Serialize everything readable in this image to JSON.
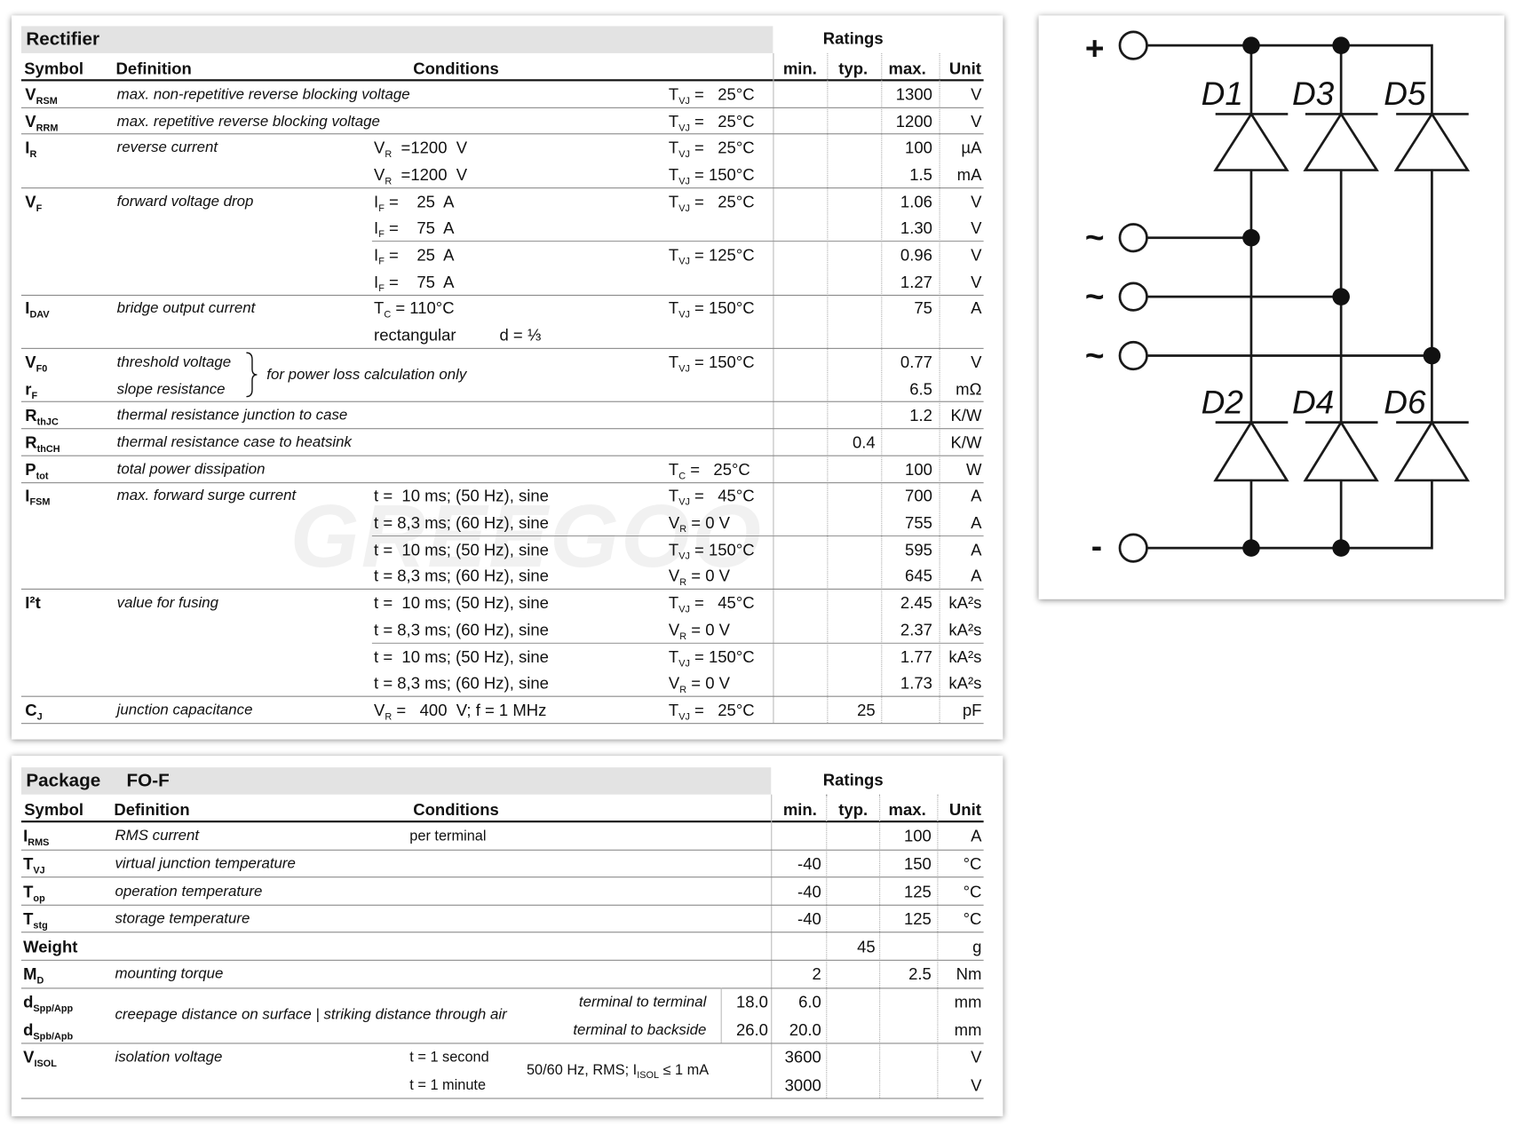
{
  "rectifier": {
    "title": "Rectifier",
    "ratings": "Ratings",
    "headers": {
      "symbol": "Symbol",
      "definition": "Definition",
      "conditions": "Conditions",
      "min": "min.",
      "typ": "typ.",
      "max": "max.",
      "unit": "Unit"
    },
    "watermark": "GREEGOO",
    "rows": [
      {
        "symbols": [
          [
            {
              "t": "V"
            },
            {
              "s": "RSM"
            }
          ]
        ],
        "definitions": [
          "max. non-repetitive reverse blocking voltage"
        ],
        "lines": [
          {
            "c2": [
              {
                "t": "T"
              },
              {
                "s": "VJ"
              },
              {
                "t": " =   25°C"
              }
            ],
            "max": "1300",
            "unit": "V"
          }
        ]
      },
      {
        "symbols": [
          [
            {
              "t": "V"
            },
            {
              "s": "RRM"
            }
          ]
        ],
        "definitions": [
          "max. repetitive reverse blocking voltage"
        ],
        "lines": [
          {
            "c2": [
              {
                "t": "T"
              },
              {
                "s": "VJ"
              },
              {
                "t": " =   25°C"
              }
            ],
            "max": "1200",
            "unit": "V"
          }
        ]
      },
      {
        "symbols": [
          [
            {
              "t": "I"
            },
            {
              "s": "R"
            }
          ]
        ],
        "definitions": [
          "reverse current"
        ],
        "lines": [
          {
            "c1": [
              {
                "t": "V"
              },
              {
                "s": "R"
              },
              {
                "t": "  =1200  V"
              }
            ],
            "c2": [
              {
                "t": "T"
              },
              {
                "s": "VJ"
              },
              {
                "t": " =   25°C"
              }
            ],
            "max": "100",
            "unit": "µA"
          },
          {
            "c1": [
              {
                "t": "V"
              },
              {
                "s": "R"
              },
              {
                "t": "  =1200  V"
              }
            ],
            "c2": [
              {
                "t": "T"
              },
              {
                "s": "VJ"
              },
              {
                "t": " = 150°C"
              }
            ],
            "max": "1.5",
            "unit": "mA"
          }
        ]
      },
      {
        "symbols": [
          [
            {
              "t": "V"
            },
            {
              "s": "F"
            }
          ]
        ],
        "definitions": [
          "forward voltage drop"
        ],
        "lines": [
          {
            "c1": [
              {
                "t": "I"
              },
              {
                "s": "F"
              },
              {
                "t": " =    25  A"
              }
            ],
            "c2": [
              {
                "t": "T"
              },
              {
                "s": "VJ"
              },
              {
                "t": " =   25°C"
              }
            ],
            "max": "1.06",
            "unit": "V"
          },
          {
            "c1": [
              {
                "t": "I"
              },
              {
                "s": "F"
              },
              {
                "t": " =    75  A"
              }
            ],
            "max": "1.30",
            "unit": "V"
          },
          {
            "c1": [
              {
                "t": "I"
              },
              {
                "s": "F"
              },
              {
                "t": " =    25  A"
              }
            ],
            "c2": [
              {
                "t": "T"
              },
              {
                "s": "VJ"
              },
              {
                "t": " = 125°C"
              }
            ],
            "max": "0.96",
            "unit": "V"
          },
          {
            "c1": [
              {
                "t": "I"
              },
              {
                "s": "F"
              },
              {
                "t": " =    75  A"
              }
            ],
            "max": "1.27",
            "unit": "V"
          }
        ]
      },
      {
        "symbols": [
          [
            {
              "t": "I"
            },
            {
              "s": "DAV"
            }
          ]
        ],
        "definitions": [
          "bridge output current"
        ],
        "lines": [
          {
            "c1": [
              {
                "t": "T"
              },
              {
                "s": "C"
              },
              {
                "t": " = 110°C"
              }
            ],
            "c2": [
              {
                "t": "T"
              },
              {
                "s": "VJ"
              },
              {
                "t": " = 150°C"
              }
            ],
            "max": "75",
            "unit": "A"
          },
          {
            "c1": "rectangular",
            "c1b": "d = ⅓"
          }
        ]
      },
      {
        "symbols": [
          [
            {
              "t": "V"
            },
            {
              "s": "F0"
            }
          ],
          [
            {
              "t": "r"
            },
            {
              "s": "F"
            }
          ]
        ],
        "definitions": [
          "threshold voltage",
          "slope resistance"
        ],
        "note": "for power loss calculation only",
        "lines": [
          {
            "c2": [
              {
                "t": "T"
              },
              {
                "s": "VJ"
              },
              {
                "t": " = 150°C"
              }
            ],
            "max": "0.77",
            "unit": "V"
          },
          {
            "max": "6.5",
            "unit": "mΩ"
          }
        ]
      },
      {
        "symbols": [
          [
            {
              "t": "R"
            },
            {
              "s": "thJC"
            }
          ]
        ],
        "definitions": [
          "thermal resistance junction to case"
        ],
        "lines": [
          {
            "max": "1.2",
            "unit": "K/W"
          }
        ]
      },
      {
        "symbols": [
          [
            {
              "t": "R"
            },
            {
              "s": "thCH"
            }
          ]
        ],
        "definitions": [
          "thermal resistance case to heatsink"
        ],
        "lines": [
          {
            "typ": "0.4",
            "unit": "K/W"
          }
        ]
      },
      {
        "symbols": [
          [
            {
              "t": "P"
            },
            {
              "s": "tot"
            }
          ]
        ],
        "definitions": [
          "total power dissipation"
        ],
        "lines": [
          {
            "c2": [
              {
                "t": "T"
              },
              {
                "s": "C"
              },
              {
                "t": " =   25°C"
              }
            ],
            "max": "100",
            "unit": "W"
          }
        ]
      },
      {
        "symbols": [
          [
            {
              "t": "I"
            },
            {
              "s": "FSM"
            }
          ]
        ],
        "definitions": [
          "max. forward surge current"
        ],
        "lines": [
          {
            "c1": "t =  10 ms; (50 Hz), sine",
            "c2": [
              {
                "t": "T"
              },
              {
                "s": "VJ"
              },
              {
                "t": " =   45°C"
              }
            ],
            "max": "700",
            "unit": "A"
          },
          {
            "c1": "t = 8,3 ms; (60 Hz), sine",
            "c2": [
              {
                "t": "V"
              },
              {
                "s": "R"
              },
              {
                "t": " = 0 V"
              }
            ],
            "max": "755",
            "unit": "A"
          },
          {
            "c1": "t =  10 ms; (50 Hz), sine",
            "c2": [
              {
                "t": "T"
              },
              {
                "s": "VJ"
              },
              {
                "t": " = 150°C"
              }
            ],
            "max": "595",
            "unit": "A"
          },
          {
            "c1": "t = 8,3 ms; (60 Hz), sine",
            "c2": [
              {
                "t": "V"
              },
              {
                "s": "R"
              },
              {
                "t": " = 0 V"
              }
            ],
            "max": "645",
            "unit": "A"
          }
        ]
      },
      {
        "symbols": [
          [
            {
              "t": "I²t"
            }
          ]
        ],
        "definitions": [
          "value for fusing"
        ],
        "lines": [
          {
            "c1": "t =  10 ms; (50 Hz), sine",
            "c2": [
              {
                "t": "T"
              },
              {
                "s": "VJ"
              },
              {
                "t": " =   45°C"
              }
            ],
            "max": "2.45",
            "unit": "kA²s"
          },
          {
            "c1": "t = 8,3 ms; (60 Hz), sine",
            "c2": [
              {
                "t": "V"
              },
              {
                "s": "R"
              },
              {
                "t": " = 0 V"
              }
            ],
            "max": "2.37",
            "unit": "kA²s"
          },
          {
            "c1": "t =  10 ms; (50 Hz), sine",
            "c2": [
              {
                "t": "T"
              },
              {
                "s": "VJ"
              },
              {
                "t": " = 150°C"
              }
            ],
            "max": "1.77",
            "unit": "kA²s"
          },
          {
            "c1": "t = 8,3 ms; (60 Hz), sine",
            "c2": [
              {
                "t": "V"
              },
              {
                "s": "R"
              },
              {
                "t": " = 0 V"
              }
            ],
            "max": "1.73",
            "unit": "kA²s"
          }
        ]
      },
      {
        "symbols": [
          [
            {
              "t": "C"
            },
            {
              "s": "J"
            }
          ]
        ],
        "definitions": [
          "junction capacitance"
        ],
        "lines": [
          {
            "c1": [
              {
                "t": "V"
              },
              {
                "s": "R"
              },
              {
                "t": " =   400  V; f = 1 MHz"
              }
            ],
            "c2": [
              {
                "t": "T"
              },
              {
                "s": "VJ"
              },
              {
                "t": " =   25°C"
              }
            ],
            "typ": "25",
            "unit": "pF"
          }
        ]
      }
    ]
  },
  "package": {
    "title": "Package",
    "subtitle": "FO-F",
    "ratings": "Ratings",
    "headers": {
      "symbol": "Symbol",
      "definition": "Definition",
      "conditions": "Conditions",
      "min": "min.",
      "typ": "typ.",
      "max": "max.",
      "unit": "Unit"
    },
    "rows": [
      {
        "symbols": [
          [
            {
              "t": "I"
            },
            {
              "s": "RMS"
            }
          ]
        ],
        "definitions": [
          "RMS current"
        ],
        "lines": [
          {
            "c1": "per terminal",
            "max": "100",
            "unit": "A"
          }
        ]
      },
      {
        "symbols": [
          [
            {
              "t": "T"
            },
            {
              "s": "VJ"
            }
          ]
        ],
        "definitions": [
          "virtual junction temperature"
        ],
        "lines": [
          {
            "min": "-40",
            "max": "150",
            "unit": "°C"
          }
        ]
      },
      {
        "symbols": [
          [
            {
              "t": "T"
            },
            {
              "s": "op"
            }
          ]
        ],
        "definitions": [
          "operation temperature"
        ],
        "lines": [
          {
            "min": "-40",
            "max": "125",
            "unit": "°C"
          }
        ]
      },
      {
        "symbols": [
          [
            {
              "t": "T"
            },
            {
              "s": "stg"
            }
          ]
        ],
        "definitions": [
          "storage temperature"
        ],
        "lines": [
          {
            "min": "-40",
            "max": "125",
            "unit": "°C"
          }
        ]
      },
      {
        "symbols": [
          [
            {
              "t": "Weight"
            }
          ]
        ],
        "lines": [
          {
            "typ": "45",
            "unit": "g"
          }
        ]
      },
      {
        "symbols": [
          [
            {
              "t": "M"
            },
            {
              "s": "D"
            }
          ]
        ],
        "definitions": [
          "mounting torque"
        ],
        "lines": [
          {
            "min": "2",
            "max": "2.5",
            "unit": "Nm"
          }
        ]
      },
      {
        "symbols": [
          [
            {
              "t": "d"
            },
            {
              "s": "Spp/App"
            }
          ],
          [
            {
              "t": "d"
            },
            {
              "s": "Spb/Apb"
            }
          ]
        ],
        "definitions": [
          "creepage distance on surface | striking distance through air"
        ],
        "lines": [
          {
            "c3": "terminal to terminal",
            "extra": "18.0",
            "min": "6.0",
            "unit": "mm"
          },
          {
            "c3": "terminal to backside",
            "extra": "26.0",
            "min": "20.0",
            "unit": "mm"
          }
        ]
      },
      {
        "symbols": [
          [
            {
              "t": "V"
            },
            {
              "s": "ISOL"
            }
          ]
        ],
        "definitions": [
          "isolation voltage"
        ],
        "note": [
          {
            "t": "50/60 Hz, RMS; I"
          },
          {
            "s": "ISOL"
          },
          {
            "t": " ≤ 1 mA"
          }
        ],
        "lines": [
          {
            "c1": "t = 1 second",
            "min": "3600",
            "unit": "V"
          },
          {
            "c1": "t = 1 minute",
            "min": "3000",
            "unit": "V"
          }
        ]
      }
    ]
  },
  "diagram": {
    "terminals": [
      "+",
      "~",
      "~",
      "~",
      "-"
    ],
    "diodes": [
      "D1",
      "D3",
      "D5",
      "D2",
      "D4",
      "D6"
    ]
  }
}
